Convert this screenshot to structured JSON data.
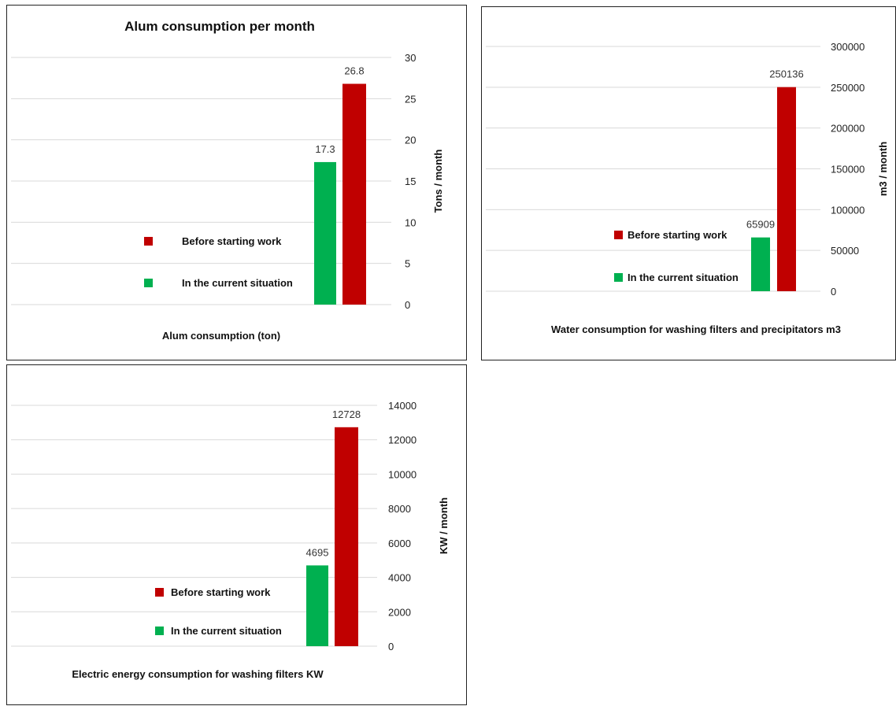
{
  "chart_data": [
    {
      "type": "bar",
      "title": "Alum consumption per month",
      "categories": [
        "Alum consumption (ton)"
      ],
      "ylabel": "Tons / month",
      "ylim": [
        0,
        30
      ],
      "yticks": [
        0,
        5,
        10,
        15,
        20,
        25,
        30
      ],
      "legend_position": "left",
      "series": [
        {
          "name": "In the current situation",
          "values": [
            17.3
          ],
          "color": "#00b050",
          "label": "17.3"
        },
        {
          "name": "Before starting work",
          "values": [
            26.8
          ],
          "color": "#c00000",
          "label": "26.8"
        }
      ]
    },
    {
      "type": "bar",
      "title": "",
      "categories": [
        "Water consumption for washing filters and precipitators m3"
      ],
      "ylabel": "m3 / month",
      "ylim": [
        0,
        300000
      ],
      "yticks": [
        0,
        50000,
        100000,
        150000,
        200000,
        250000,
        300000
      ],
      "legend_position": "left",
      "series": [
        {
          "name": "In the current situation",
          "values": [
            65909
          ],
          "color": "#00b050",
          "label": "65909"
        },
        {
          "name": "Before starting work",
          "values": [
            250136
          ],
          "color": "#c00000",
          "label": "250136"
        }
      ]
    },
    {
      "type": "bar",
      "title": "",
      "categories": [
        "Electric energy consumption for washing filters KW"
      ],
      "ylabel": "KW / month",
      "ylim": [
        0,
        14000
      ],
      "yticks": [
        0,
        2000,
        4000,
        6000,
        8000,
        10000,
        12000,
        14000
      ],
      "legend_position": "left",
      "series": [
        {
          "name": "In the current situation",
          "values": [
            4695
          ],
          "color": "#00b050",
          "label": "4695"
        },
        {
          "name": "Before starting work",
          "values": [
            12728
          ],
          "color": "#c00000",
          "label": "12728"
        }
      ]
    }
  ]
}
